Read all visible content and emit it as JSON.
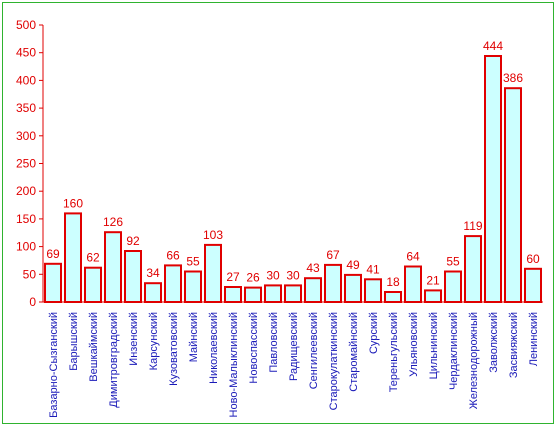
{
  "chart_data": {
    "type": "bar",
    "categories": [
      "Базарно-Сызганский",
      "Барышский",
      "Вешкаймский",
      "Димитровградский",
      "Инзенский",
      "Карсунский",
      "Кузоватовский",
      "Майнский",
      "Николаевский",
      "Ново-Малыклинский",
      "Новоспасский",
      "Павловский",
      "Радищевский",
      "Сенгилеевский",
      "Старокулаткинский",
      "Старомайнский",
      "Сурский",
      "Тереньгульский",
      "Ульяновский",
      "Цильнинский",
      "Чердаклинский",
      "Железнодорожный",
      "Заволжский",
      "Засвияжский",
      "Ленинский"
    ],
    "values": [
      69,
      160,
      62,
      126,
      92,
      34,
      66,
      55,
      103,
      27,
      26,
      30,
      30,
      43,
      67,
      49,
      41,
      18,
      64,
      21,
      55,
      119,
      444,
      386,
      60
    ],
    "ylim": [
      0,
      500
    ],
    "yticks": [
      0,
      50,
      100,
      150,
      200,
      250,
      300,
      350,
      400,
      450,
      500
    ],
    "title": "",
    "xlabel": "",
    "ylabel": "",
    "grid": false,
    "colors": {
      "bar_fill": "#ccffff",
      "bar_stroke": "#e00000",
      "axis": "#e00000",
      "tick_label": "#e00000",
      "category_label": "#1a1ab8",
      "border": "#2fb32f"
    }
  }
}
